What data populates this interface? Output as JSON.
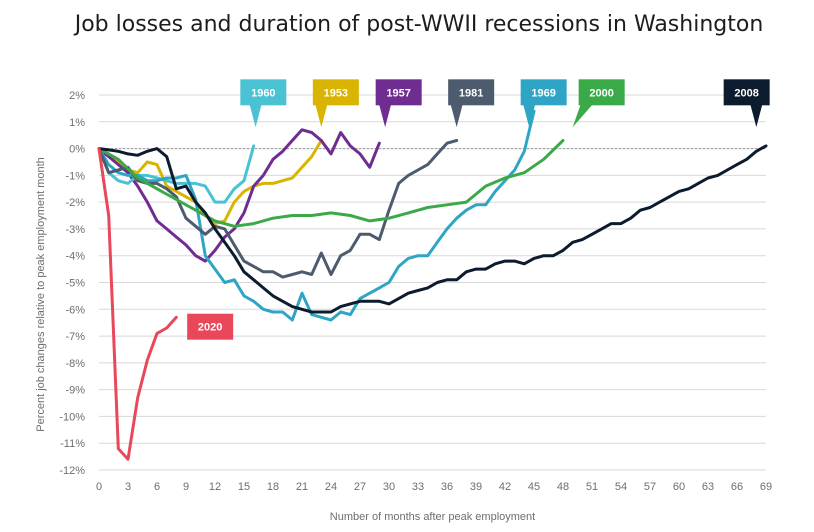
{
  "chart_data": {
    "type": "line",
    "title": "Job losses and duration of post-WWII recessions in Washington",
    "xlabel": "Number of months after peak employment",
    "ylabel": "Percent job changes relative to peak employment month",
    "xlim": [
      0,
      69
    ],
    "ylim": [
      -12,
      2
    ],
    "x_ticks": [
      0,
      3,
      6,
      9,
      12,
      15,
      18,
      21,
      24,
      27,
      30,
      33,
      36,
      39,
      42,
      45,
      48,
      51,
      54,
      57,
      60,
      63,
      66,
      69
    ],
    "y_ticks": [
      2,
      1,
      0,
      -1,
      -2,
      -3,
      -4,
      -5,
      -6,
      -7,
      -8,
      -9,
      -10,
      -11,
      -12
    ],
    "y_tick_labels": [
      "2%",
      "1%",
      "0%",
      "-1%",
      "-2%",
      "-3%",
      "-4%",
      "-5%",
      "-6%",
      "-7%",
      "-8%",
      "-9%",
      "-10%",
      "-11%",
      "-12%"
    ],
    "grid": true,
    "series": [
      {
        "name": "1953",
        "color": "#d9b400",
        "x": [
          0,
          1,
          2,
          3,
          4,
          5,
          6,
          7,
          8,
          9,
          10,
          11,
          12,
          13,
          14,
          15,
          16,
          17,
          18,
          19,
          20,
          21,
          22,
          23
        ],
        "y": [
          0,
          -0.2,
          -0.5,
          -0.8,
          -0.9,
          -0.5,
          -0.6,
          -1.4,
          -1.6,
          -1.8,
          -2.0,
          -2.5,
          -2.8,
          -2.7,
          -2.0,
          -1.6,
          -1.4,
          -1.3,
          -1.3,
          -1.2,
          -1.1,
          -0.7,
          -0.3,
          0.3
        ]
      },
      {
        "name": "1957",
        "color": "#6f2c91",
        "x": [
          0,
          1,
          2,
          3,
          4,
          5,
          6,
          7,
          8,
          9,
          10,
          11,
          12,
          13,
          14,
          15,
          16,
          17,
          18,
          19,
          20,
          21,
          22,
          23,
          24,
          25,
          26,
          27,
          28,
          29
        ],
        "y": [
          0,
          -0.3,
          -0.6,
          -0.9,
          -1.4,
          -2.0,
          -2.7,
          -3.0,
          -3.3,
          -3.6,
          -4.0,
          -4.2,
          -3.8,
          -3.3,
          -3.0,
          -2.4,
          -1.4,
          -1.0,
          -0.4,
          -0.1,
          0.3,
          0.7,
          0.6,
          0.3,
          -0.2,
          0.6,
          0.1,
          -0.2,
          -0.7,
          0.2
        ]
      },
      {
        "name": "1960",
        "color": "#49c2d4",
        "x": [
          0,
          1,
          2,
          3,
          4,
          5,
          6,
          7,
          8,
          9,
          10,
          11,
          12,
          13,
          14,
          15,
          16
        ],
        "y": [
          0,
          -0.9,
          -1.2,
          -1.3,
          -1.0,
          -1.0,
          -1.1,
          -1.2,
          -1.3,
          -1.3,
          -1.3,
          -1.4,
          -2.0,
          -2.0,
          -1.5,
          -1.2,
          0.1
        ]
      },
      {
        "name": "1969",
        "color": "#2fa5c6",
        "x": [
          0,
          1,
          2,
          3,
          4,
          5,
          6,
          7,
          8,
          9,
          10,
          11,
          12,
          13,
          14,
          15,
          16,
          17,
          18,
          19,
          20,
          21,
          22,
          23,
          24,
          25,
          26,
          27,
          28,
          29,
          30,
          31,
          32,
          33,
          34,
          35,
          36,
          37,
          38,
          39,
          40,
          41,
          42,
          43,
          44,
          45
        ],
        "y": [
          0,
          -0.6,
          -0.9,
          -1.0,
          -1.0,
          -1.2,
          -1.2,
          -1.1,
          -1.1,
          -1.0,
          -1.9,
          -4.0,
          -4.5,
          -5.0,
          -4.9,
          -5.5,
          -5.7,
          -6.0,
          -6.1,
          -6.1,
          -6.4,
          -5.4,
          -6.2,
          -6.3,
          -6.4,
          -6.1,
          -6.2,
          -5.6,
          -5.4,
          -5.2,
          -5.0,
          -4.4,
          -4.1,
          -4.0,
          -4.0,
          -3.5,
          -3.0,
          -2.6,
          -2.3,
          -2.1,
          -2.1,
          -1.6,
          -1.2,
          -0.8,
          -0.1,
          1.4
        ]
      },
      {
        "name": "1981",
        "color": "#4d5b6e",
        "x": [
          0,
          1,
          2,
          3,
          4,
          5,
          6,
          7,
          8,
          9,
          10,
          11,
          12,
          13,
          14,
          15,
          16,
          17,
          18,
          19,
          20,
          21,
          22,
          23,
          24,
          25,
          26,
          27,
          28,
          29,
          30,
          31,
          32,
          33,
          34,
          35,
          36,
          37
        ],
        "y": [
          0,
          -0.9,
          -0.8,
          -0.7,
          -1.2,
          -1.3,
          -1.3,
          -1.5,
          -1.8,
          -2.6,
          -2.9,
          -3.2,
          -2.9,
          -3.0,
          -3.6,
          -4.2,
          -4.4,
          -4.6,
          -4.6,
          -4.8,
          -4.7,
          -4.6,
          -4.7,
          -3.9,
          -4.7,
          -4.0,
          -3.8,
          -3.2,
          -3.2,
          -3.4,
          -2.3,
          -1.3,
          -1.0,
          -0.8,
          -0.6,
          -0.2,
          0.2,
          0.3
        ]
      },
      {
        "name": "2000",
        "color": "#3aaa48",
        "x": [
          0,
          2,
          4,
          6,
          8,
          10,
          12,
          14,
          16,
          18,
          20,
          22,
          24,
          26,
          28,
          30,
          32,
          34,
          36,
          38,
          40,
          42,
          44,
          46,
          48
        ],
        "y": [
          0,
          -0.4,
          -1.1,
          -1.5,
          -1.9,
          -2.3,
          -2.7,
          -2.9,
          -2.8,
          -2.6,
          -2.5,
          -2.5,
          -2.4,
          -2.5,
          -2.7,
          -2.6,
          -2.4,
          -2.2,
          -2.1,
          -2.0,
          -1.4,
          -1.1,
          -0.9,
          -0.4,
          0.3
        ]
      },
      {
        "name": "2008",
        "color": "#0d1b2e",
        "x": [
          0,
          1,
          2,
          3,
          4,
          5,
          6,
          7,
          8,
          9,
          10,
          11,
          12,
          13,
          14,
          15,
          16,
          17,
          18,
          19,
          20,
          21,
          22,
          23,
          24,
          25,
          26,
          27,
          28,
          29,
          30,
          31,
          32,
          33,
          34,
          35,
          36,
          37,
          38,
          39,
          40,
          41,
          42,
          43,
          44,
          45,
          46,
          47,
          48,
          49,
          50,
          51,
          52,
          53,
          54,
          55,
          56,
          57,
          58,
          59,
          60,
          61,
          62,
          63,
          64,
          65,
          66,
          67,
          68,
          69
        ],
        "y": [
          0,
          -0.05,
          -0.1,
          -0.2,
          -0.25,
          -0.1,
          0.0,
          -0.3,
          -1.5,
          -1.4,
          -2.0,
          -2.4,
          -3.0,
          -3.5,
          -4.0,
          -4.6,
          -4.9,
          -5.2,
          -5.5,
          -5.7,
          -5.9,
          -6.0,
          -6.1,
          -6.1,
          -6.1,
          -5.9,
          -5.8,
          -5.7,
          -5.7,
          -5.7,
          -5.8,
          -5.6,
          -5.4,
          -5.3,
          -5.2,
          -5.0,
          -4.9,
          -4.9,
          -4.6,
          -4.5,
          -4.5,
          -4.3,
          -4.2,
          -4.2,
          -4.3,
          -4.1,
          -4.0,
          -4.0,
          -3.8,
          -3.5,
          -3.4,
          -3.2,
          -3.0,
          -2.8,
          -2.8,
          -2.6,
          -2.3,
          -2.2,
          -2.0,
          -1.8,
          -1.6,
          -1.5,
          -1.3,
          -1.1,
          -1.0,
          -0.8,
          -0.6,
          -0.4,
          -0.1,
          0.1
        ]
      },
      {
        "name": "2020",
        "color": "#e8485a",
        "x": [
          0,
          1,
          2,
          3,
          4,
          5,
          6,
          7,
          8
        ],
        "y": [
          0,
          -2.5,
          -11.2,
          -11.6,
          -9.3,
          -7.9,
          -6.9,
          -6.7,
          -6.3
        ]
      }
    ],
    "callouts": [
      {
        "label": "1960",
        "color": "#49c2d4",
        "box_x": 17,
        "box_y": 2.1,
        "pointer_x": 16.2,
        "pointer_y": 0.8
      },
      {
        "label": "1953",
        "color": "#d9b400",
        "box_x": 24.5,
        "box_y": 2.1,
        "pointer_x": 23.0,
        "pointer_y": 0.8
      },
      {
        "label": "1957",
        "color": "#6f2c91",
        "box_x": 31,
        "box_y": 2.1,
        "pointer_x": 29.6,
        "pointer_y": 0.8
      },
      {
        "label": "1981",
        "color": "#4d5b6e",
        "box_x": 38.5,
        "box_y": 2.1,
        "pointer_x": 37.0,
        "pointer_y": 0.8
      },
      {
        "label": "1969",
        "color": "#2fa5c6",
        "box_x": 46,
        "box_y": 2.1,
        "pointer_x": 44.5,
        "pointer_y": 0.8
      },
      {
        "label": "2000",
        "color": "#3aaa48",
        "box_x": 52,
        "box_y": 2.1,
        "pointer_x": 49.0,
        "pointer_y": 0.8
      },
      {
        "label": "2008",
        "color": "#0d1b2e",
        "box_x": 67,
        "box_y": 2.1,
        "pointer_x": 68.0,
        "pointer_y": 0.8
      },
      {
        "label": "2020",
        "color": "#e8485a",
        "box_x": 11.5,
        "box_y": -6.65,
        "pointer_x": 9.3,
        "pointer_y": -6.65
      }
    ]
  }
}
